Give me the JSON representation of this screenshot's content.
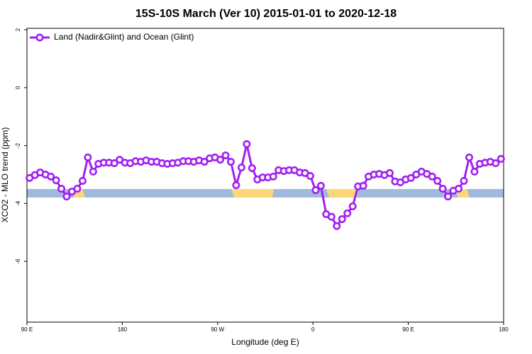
{
  "chart_data": {
    "type": "line",
    "title": "15S-10S March (Ver 10)   2015-01-01 to 2020-12-18",
    "x_label": "Longitude (deg E)",
    "y_label": "XCO2 - MLO trend (ppm)",
    "x": [
      92.5,
      97.5,
      102.5,
      107.5,
      112.5,
      117.5,
      122.5,
      127.5,
      132.5,
      137.5,
      142.5,
      147.5,
      152.5,
      157.5,
      162.5,
      167.5,
      172.5,
      177.5,
      182.5,
      187.5,
      192.5,
      197.5,
      202.5,
      207.5,
      212.5,
      217.5,
      222.5,
      227.5,
      232.5,
      237.5,
      242.5,
      247.5,
      252.5,
      257.5,
      262.5,
      267.5,
      272.5,
      277.5,
      282.5,
      287.5,
      292.5,
      297.5,
      302.5,
      307.5,
      312.5,
      317.5,
      322.5,
      327.5,
      332.5,
      337.5,
      342.5,
      347.5,
      352.5,
      357.5,
      362.5,
      367.5,
      372.5,
      377.5,
      382.5,
      387.5,
      392.5,
      397.5,
      402.5,
      407.5,
      412.5,
      417.5,
      422.5,
      427.5,
      432.5,
      437.5,
      442.5,
      447.5,
      452.5,
      457.5,
      462.5,
      467.5,
      472.5,
      477.5,
      482.5,
      487.5,
      492.5,
      497.5,
      502.5,
      507.5,
      512.5,
      517.5,
      522.5,
      527.5,
      532.5,
      537.5
    ],
    "series": [
      {
        "name": "Land (Nadir&Glint) and Ocean (Glint)",
        "color": "#a020f0",
        "values": [
          -3.12,
          -3.02,
          -2.93,
          -3.0,
          -3.07,
          -3.2,
          -3.49,
          -3.76,
          -3.59,
          -3.49,
          -3.22,
          -2.41,
          -2.9,
          -2.63,
          -2.59,
          -2.59,
          -2.61,
          -2.49,
          -2.59,
          -2.61,
          -2.54,
          -2.56,
          -2.51,
          -2.56,
          -2.56,
          -2.61,
          -2.63,
          -2.61,
          -2.59,
          -2.54,
          -2.54,
          -2.56,
          -2.51,
          -2.56,
          -2.44,
          -2.41,
          -2.49,
          -2.34,
          -2.56,
          -3.37,
          -2.76,
          -1.95,
          -2.78,
          -3.17,
          -3.1,
          -3.1,
          -3.07,
          -2.85,
          -2.88,
          -2.85,
          -2.85,
          -2.93,
          -2.95,
          -3.05,
          -3.54,
          -3.39,
          -4.37,
          -4.46,
          -4.78,
          -4.54,
          -4.34,
          -4.1,
          -3.41,
          -3.39,
          -3.07,
          -3.0,
          -2.98,
          -3.02,
          -2.95,
          -3.24,
          -3.27,
          -3.17,
          -3.12,
          -3.0,
          -2.9,
          -2.98,
          -3.07,
          -3.22,
          -3.49,
          -3.76,
          -3.56,
          -3.49,
          -3.22,
          -2.41,
          -2.9,
          -2.63,
          -2.59,
          -2.56,
          -2.61,
          -2.46
        ]
      }
    ],
    "xlim": [
      90,
      540
    ],
    "xticks": [
      {
        "value": 90,
        "label": "90 E"
      },
      {
        "value": 180,
        "label": "180"
      },
      {
        "value": 270,
        "label": "90 W"
      },
      {
        "value": 360,
        "label": "0"
      },
      {
        "value": 450,
        "label": "90 E"
      },
      {
        "value": 540,
        "label": "180"
      }
    ],
    "ylim": [
      -8.1,
      2.05
    ],
    "yticks": [
      2,
      0,
      -2,
      -4,
      -6
    ],
    "legend": "top-left"
  }
}
